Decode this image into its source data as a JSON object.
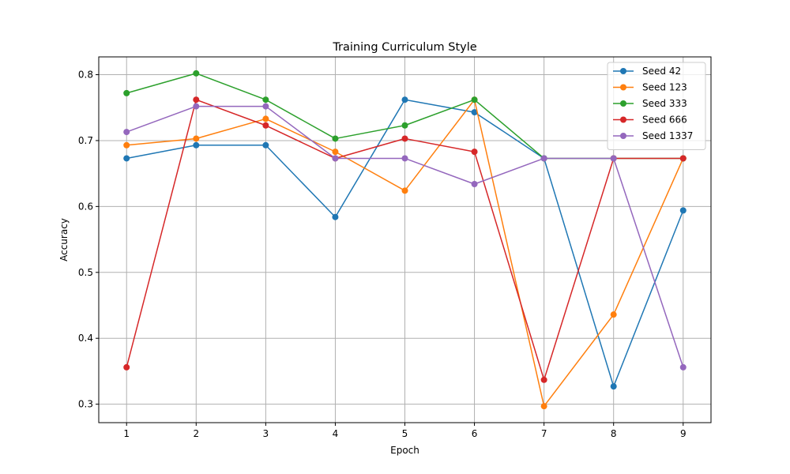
{
  "chart_data": {
    "type": "line",
    "title": "Training Curriculum Style",
    "xlabel": "Epoch",
    "ylabel": "Accuracy",
    "x": [
      1,
      2,
      3,
      4,
      5,
      6,
      7,
      8,
      9
    ],
    "xlim": [
      0.6,
      9.4
    ],
    "ylim": [
      0.272,
      0.827
    ],
    "yticks": [
      0.3,
      0.4,
      0.5,
      0.6,
      0.7,
      0.8
    ],
    "grid": true,
    "legend_position": "top-right",
    "series": [
      {
        "name": "Seed 42",
        "color": "#1f77b4",
        "values": [
          0.673,
          0.693,
          0.693,
          0.584,
          0.762,
          0.743,
          0.673,
          0.327,
          0.594
        ]
      },
      {
        "name": "Seed 123",
        "color": "#ff7f0e",
        "values": [
          0.693,
          0.703,
          0.733,
          0.683,
          0.624,
          0.762,
          0.297,
          0.436,
          0.673
        ]
      },
      {
        "name": "Seed 333",
        "color": "#2ca02c",
        "values": [
          0.772,
          0.802,
          0.762,
          0.703,
          0.723,
          0.762,
          0.673,
          0.673,
          0.673
        ]
      },
      {
        "name": "Seed 666",
        "color": "#d62728",
        "values": [
          0.356,
          0.762,
          0.723,
          0.673,
          0.703,
          0.683,
          0.337,
          0.673,
          0.673
        ]
      },
      {
        "name": "Seed 1337",
        "color": "#9467bd",
        "values": [
          0.713,
          0.752,
          0.752,
          0.673,
          0.673,
          0.634,
          0.673,
          0.673,
          0.356
        ]
      }
    ]
  }
}
